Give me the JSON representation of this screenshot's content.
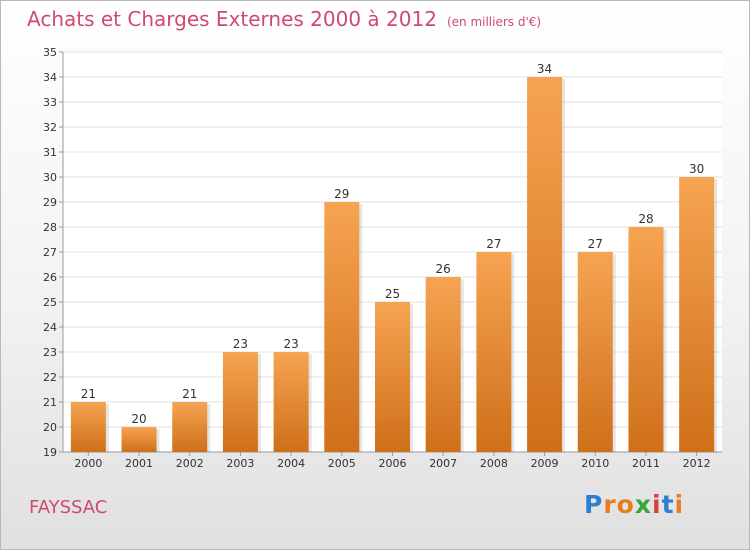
{
  "header": {
    "title": "Achats et Charges Externes 2000 à 2012",
    "subtitle": "(en milliers d'€)"
  },
  "footer": {
    "commune": "FAYSSAC",
    "logo_letters": [
      "P",
      "r",
      "o",
      "x",
      "i",
      "t",
      "i"
    ],
    "logo_colors": [
      "#2f7fd0",
      "#e87c1e",
      "#e87c1e",
      "#3aa63a",
      "#d64242",
      "#2f7fd0",
      "#e87c1e"
    ]
  },
  "colors": {
    "accent": "#d04a6e",
    "bar_light": "#f6a452",
    "bar_dark": "#cf6f1a"
  },
  "chart_data": {
    "type": "bar",
    "title": "Achats et Charges Externes 2000 à 2012",
    "subtitle": "(en milliers d'€)",
    "categories": [
      "2000",
      "2001",
      "2002",
      "2003",
      "2004",
      "2005",
      "2006",
      "2007",
      "2008",
      "2009",
      "2010",
      "2011",
      "2012"
    ],
    "values": [
      21,
      20,
      21,
      23,
      23,
      29,
      25,
      26,
      27,
      34,
      27,
      28,
      30
    ],
    "ylim": [
      19,
      35
    ],
    "yticks": [
      19,
      20,
      21,
      22,
      23,
      24,
      25,
      26,
      27,
      28,
      29,
      30,
      31,
      32,
      33,
      34,
      35
    ],
    "grid": true,
    "legend": "none"
  }
}
